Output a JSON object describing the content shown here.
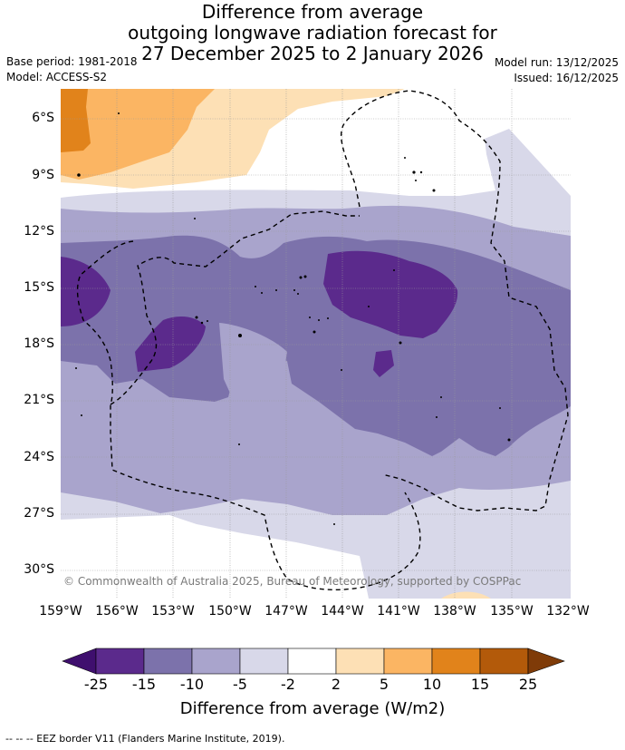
{
  "title": {
    "line1": "Difference from average",
    "line2": "outgoing longwave radiation forecast for",
    "line3": "27 December 2025 to 2 January 2026"
  },
  "meta": {
    "base_period": "Base period: 1981-2018",
    "model": "Model: ACCESS-S2",
    "model_run": "Model run: 13/12/2025",
    "issued": "Issued: 16/12/2025"
  },
  "map": {
    "lat_labels": [
      "6°S",
      "9°S",
      "12°S",
      "15°S",
      "18°S",
      "21°S",
      "24°S",
      "27°S",
      "30°S"
    ],
    "lon_labels": [
      "159°W",
      "156°W",
      "153°W",
      "150°W",
      "147°W",
      "144°W",
      "141°W",
      "138°W",
      "135°W",
      "132°W"
    ],
    "copyright": "© Commonwealth of Australia 2025, Bureau of Meteorology, supported by COSPPac"
  },
  "colorbar": {
    "ticks": [
      "-25",
      "-15",
      "-10",
      "-5",
      "-2",
      "2",
      "5",
      "10",
      "15",
      "25"
    ],
    "title": "Difference from average (W/m2)",
    "colors": {
      "below": "#3f0f6e",
      "n25_15": "#5b2a8c",
      "n15_10": "#7c72ab",
      "n10_5": "#a9a4cc",
      "n5_2": "#d8d8e9",
      "n2_2": "#ffffff",
      "p2_5": "#fde0b5",
      "p5_10": "#fbb563",
      "p10_15": "#e1831b",
      "p15_25": "#b35a0a",
      "above": "#7f3b08"
    }
  },
  "footer": "-- -- -- EEZ border V11 (Flanders Marine Institute, 2019)."
}
